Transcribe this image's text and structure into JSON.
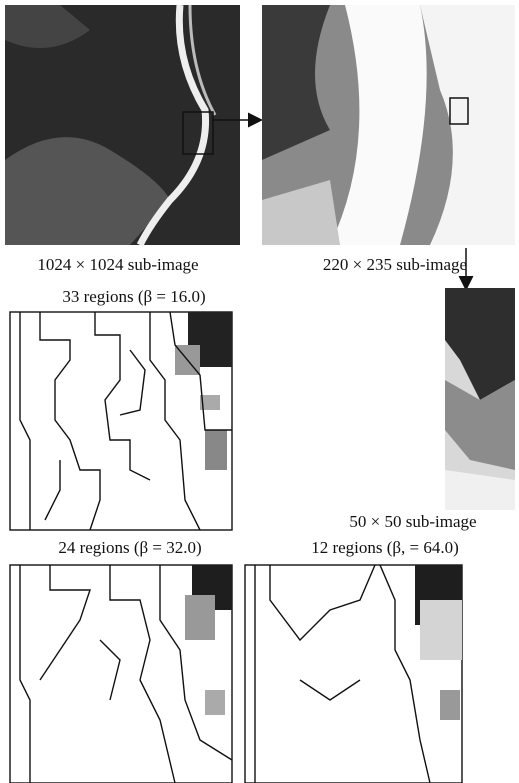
{
  "figure": {
    "panels": [
      {
        "caption": "1024 × 1024 sub-image"
      },
      {
        "caption": "220 × 235 sub-image"
      },
      {
        "caption": "33 regions (β = 16.0)"
      },
      {
        "caption": "50 × 50 sub-image"
      },
      {
        "caption": "24 regions (β = 32.0)"
      },
      {
        "caption": "12 regions (β, = 64.0)"
      }
    ]
  }
}
